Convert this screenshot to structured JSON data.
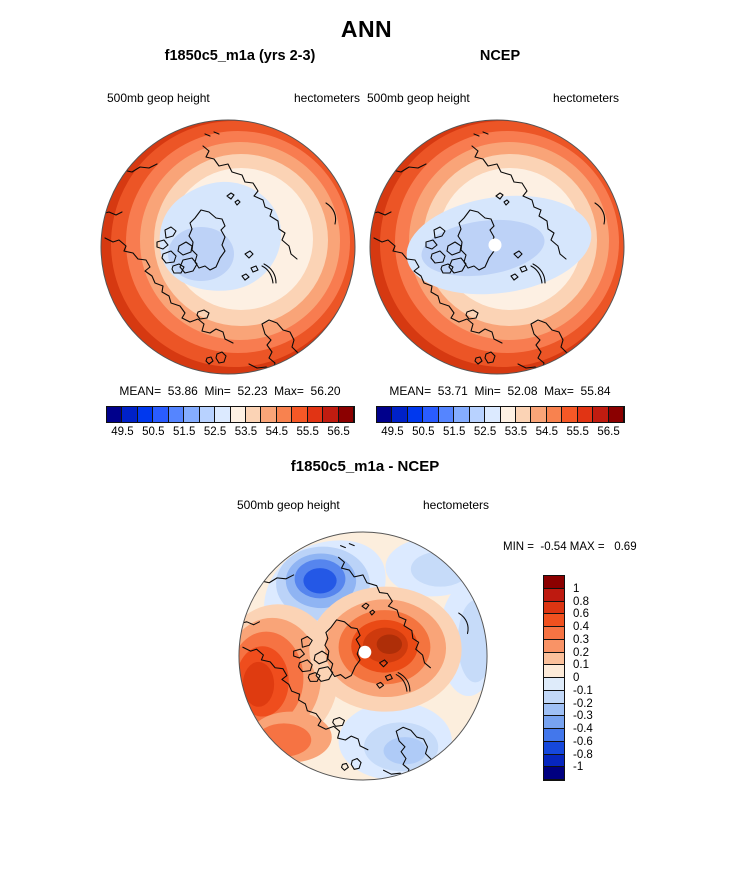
{
  "header": {
    "title": "ANN"
  },
  "panels": {
    "model": {
      "title": "f1850c5_m1a (yrs 2-3)",
      "field": "500mb geop height",
      "units": "hectometers",
      "stats_line": "MEAN=  53.86  Min=  52.23  Max=  56.20"
    },
    "ncep": {
      "title": "NCEP",
      "field": "500mb geop height",
      "units": "hectometers",
      "stats_line": "MEAN=  53.71  Min=  52.08  Max=  55.84"
    },
    "diff": {
      "title": "f1850c5_m1a - NCEP",
      "field": "500mb geop height",
      "units": "hectometers",
      "minmax_line": "MIN =  -0.54 MAX =   0.69"
    }
  },
  "colorbars": {
    "height": {
      "colors": [
        "#00008B",
        "#0021C8",
        "#0038EE",
        "#2A5CFF",
        "#5585FF",
        "#85ADFF",
        "#B8D2FF",
        "#DCEAFF",
        "#FDF0E3",
        "#FBD3B5",
        "#F9A478",
        "#F8824F",
        "#F55826",
        "#E13414",
        "#C11C10",
        "#8B0000"
      ],
      "ticks": [
        {
          "label": "49.5",
          "boundary": 1
        },
        {
          "label": "50.5",
          "boundary": 3
        },
        {
          "label": "51.5",
          "boundary": 5
        },
        {
          "label": "52.5",
          "boundary": 7
        },
        {
          "label": "53.5",
          "boundary": 9
        },
        {
          "label": "54.5",
          "boundary": 11
        },
        {
          "label": "55.5",
          "boundary": 13
        },
        {
          "label": "56.5",
          "boundary": 15
        }
      ]
    },
    "diff": {
      "colors": [
        "#8B0000",
        "#BE1A10",
        "#DC3512",
        "#F0511F",
        "#F67343",
        "#F99366",
        "#FBC09B",
        "#FDEBD9",
        "#DEEBFA",
        "#C2D8F8",
        "#9FC0F5",
        "#78A3F0",
        "#4377EB",
        "#1648DC",
        "#0726BE",
        "#000080"
      ],
      "ticks": [
        {
          "label": "1",
          "boundary": 1
        },
        {
          "label": "0.8",
          "boundary": 2
        },
        {
          "label": "0.6",
          "boundary": 3
        },
        {
          "label": "0.4",
          "boundary": 4
        },
        {
          "label": "0.3",
          "boundary": 5
        },
        {
          "label": "0.2",
          "boundary": 6
        },
        {
          "label": "0.1",
          "boundary": 7
        },
        {
          "label": "0",
          "boundary": 8
        },
        {
          "label": "-0.1",
          "boundary": 9
        },
        {
          "label": "-0.2",
          "boundary": 10
        },
        {
          "label": "-0.3",
          "boundary": 11
        },
        {
          "label": "-0.4",
          "boundary": 12
        },
        {
          "label": "-0.6",
          "boundary": 13
        },
        {
          "label": "-0.8",
          "boundary": 14
        },
        {
          "label": "-1",
          "boundary": 15
        }
      ]
    }
  },
  "chart_data": [
    {
      "type": "heatmap",
      "subtype": "north-polar-stereographic filled contour map",
      "title": "f1850c5_m1a (yrs 2-3)",
      "variable": "500mb geop height",
      "units": "hectometers",
      "season": "ANN",
      "stats": {
        "mean": 53.86,
        "min": 52.23,
        "max": 56.2
      },
      "contour_levels": [
        49.5,
        50,
        50.5,
        51,
        51.5,
        52,
        52.5,
        53,
        53.5,
        54,
        54.5,
        55,
        55.5,
        56,
        56.5
      ],
      "legend_ticks": [
        "49.5",
        "50.5",
        "51.5",
        "52.5",
        "53.5",
        "54.5",
        "55.5",
        "56.5"
      ],
      "legend_position": "below",
      "description": "Polar low (~52-53 hm, light blue) centered near the pole over the Canadian Arctic; heights increase outward to >56 hm (dark red) at the map rim."
    },
    {
      "type": "heatmap",
      "subtype": "north-polar-stereographic filled contour map",
      "title": "NCEP",
      "variable": "500mb geop height",
      "units": "hectometers",
      "season": "ANN",
      "stats": {
        "mean": 53.71,
        "min": 52.08,
        "max": 55.84
      },
      "contour_levels": [
        49.5,
        50,
        50.5,
        51,
        51.5,
        52,
        52.5,
        53,
        53.5,
        54,
        54.5,
        55,
        55.5,
        56,
        56.5
      ],
      "legend_ticks": [
        "49.5",
        "50.5",
        "51.5",
        "52.5",
        "53.5",
        "54.5",
        "55.5",
        "56.5"
      ],
      "legend_position": "below",
      "description": "Observed pattern: zonally elongated polar low across the pole (white gap at pole), heights rising to ~56 hm at the rim."
    },
    {
      "type": "heatmap",
      "subtype": "north-polar-stereographic filled contour difference map",
      "title": "f1850c5_m1a - NCEP",
      "variable": "500mb geop height",
      "units": "hectometers",
      "season": "ANN",
      "stats": {
        "min": -0.54,
        "max": 0.69
      },
      "contour_levels": [
        -1,
        -0.8,
        -0.6,
        -0.4,
        -0.3,
        -0.2,
        -0.1,
        0,
        0.1,
        0.2,
        0.3,
        0.4,
        0.6,
        0.8,
        1
      ],
      "legend_ticks": [
        "1",
        "0.8",
        "0.6",
        "0.4",
        "0.3",
        "0.2",
        "0.1",
        "0",
        "-0.1",
        "-0.2",
        "-0.3",
        "-0.4",
        "-0.6",
        "-0.8",
        "-1"
      ],
      "legend_position": "right",
      "description": "Negative bias (blue, to ~-0.5) over the Bering/Chukchi sector; positive bias (red, to ~+0.7) centered near the pole on the Siberian side and over northeastern Canada."
    }
  ]
}
